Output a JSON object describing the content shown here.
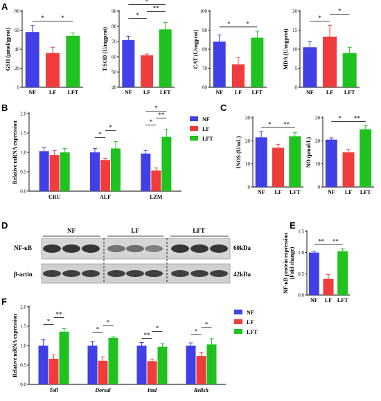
{
  "colors": {
    "NF": "#4040e6",
    "LF": "#f03c3c",
    "LFT": "#1fc21f"
  },
  "panel_labels": {
    "A": "A",
    "B": "B",
    "C": "C",
    "D": "D",
    "E": "E",
    "F": "F"
  },
  "western_blot": {
    "groups": [
      "NF",
      "LF",
      "LFT"
    ],
    "rows": [
      {
        "protein": "NF-κB",
        "size": "60kDa"
      },
      {
        "protein": "β-actin",
        "size": "42kDa"
      }
    ]
  },
  "chart_data": [
    {
      "panel": "A",
      "type": "bar",
      "ylabel": "GSH (μmol/gprot)",
      "categories": [
        "NF",
        "LF",
        "LFT"
      ],
      "ylim": [
        0,
        80
      ],
      "yticks": [
        "0",
        "20",
        "40",
        "60",
        "80"
      ],
      "ytick_values": [
        0,
        20,
        40,
        60,
        80
      ],
      "values": [
        58,
        36,
        54
      ],
      "errors": [
        7,
        6,
        3
      ],
      "sig": [
        {
          "from": 0,
          "to": 1,
          "level": 0,
          "text": "*"
        },
        {
          "from": 1,
          "to": 2,
          "level": 0,
          "text": "*"
        }
      ]
    },
    {
      "panel": "A",
      "type": "bar",
      "ylabel": "T-SOD (U/mgprot)",
      "categories": [
        "NF",
        "LF",
        "LFT"
      ],
      "ylim": [
        40,
        90
      ],
      "yticks": [
        "40",
        "50",
        "60",
        "70",
        "80",
        "90"
      ],
      "ytick_values": [
        40,
        50,
        60,
        70,
        80,
        90
      ],
      "values": [
        71,
        61,
        78
      ],
      "errors": [
        2.5,
        0.8,
        4.5
      ],
      "sig": [
        {
          "from": 0,
          "to": 1,
          "level": 0,
          "text": "*"
        },
        {
          "from": 1,
          "to": 2,
          "level": 1,
          "text": "**"
        },
        {
          "from": 0,
          "to": 2,
          "level": 2,
          "text": "*"
        }
      ]
    },
    {
      "panel": "A",
      "type": "bar",
      "ylabel": "CAT (U/mgprot)",
      "categories": [
        "NF",
        "LF",
        "LFT"
      ],
      "ylim": [
        60,
        100
      ],
      "yticks": [
        "60",
        "70",
        "80",
        "90",
        "100"
      ],
      "ytick_values": [
        60,
        70,
        80,
        90,
        100
      ],
      "values": [
        84,
        72,
        86
      ],
      "errors": [
        3.5,
        3.5,
        3.5
      ],
      "sig": [
        {
          "from": 0,
          "to": 1,
          "level": 0,
          "text": "*"
        },
        {
          "from": 1,
          "to": 2,
          "level": 0,
          "text": "*"
        }
      ]
    },
    {
      "panel": "A",
      "type": "bar",
      "ylabel": "MDA (U/mgprot)",
      "categories": [
        "NF",
        "LF",
        "LFT"
      ],
      "ylim": [
        0,
        20
      ],
      "yticks": [
        "0",
        "5",
        "10",
        "15",
        "20"
      ],
      "ytick_values": [
        0,
        5,
        10,
        15,
        20
      ],
      "values": [
        10.5,
        13.3,
        9
      ],
      "errors": [
        1.5,
        3,
        1.5
      ],
      "sig": [
        {
          "from": 0,
          "to": 1,
          "level": 0,
          "text": "*"
        },
        {
          "from": 1,
          "to": 2,
          "level": 1,
          "text": "*"
        }
      ]
    },
    {
      "panel": "B",
      "type": "bar",
      "ylabel": "Relative  mRNA expression",
      "categories": [
        "CRU",
        "ALF",
        "LZM"
      ],
      "series_names": [
        "NF",
        "LF",
        "LFT"
      ],
      "ylim": [
        0,
        2.0
      ],
      "yticks": [
        "0.0",
        "0.5",
        "1.0",
        "1.5",
        "2.0"
      ],
      "ytick_values": [
        0,
        0.5,
        1,
        1.5,
        2
      ],
      "series": [
        {
          "name": "NF",
          "values": [
            1.03,
            1.0,
            0.97
          ],
          "errors": [
            0.1,
            0.1,
            0.08
          ]
        },
        {
          "name": "LF",
          "values": [
            0.93,
            0.8,
            0.53
          ],
          "errors": [
            0.12,
            0.05,
            0.07
          ]
        },
        {
          "name": "LFT",
          "values": [
            1.0,
            1.1,
            1.4
          ],
          "errors": [
            0.1,
            0.18,
            0.2
          ]
        }
      ],
      "sig": [
        {
          "group": 1,
          "from": 0,
          "to": 1,
          "level": 0,
          "text": "*"
        },
        {
          "group": 1,
          "from": 1,
          "to": 2,
          "level": 1,
          "text": "*"
        },
        {
          "group": 2,
          "from": 0,
          "to": 1,
          "level": 0,
          "text": "*"
        },
        {
          "group": 2,
          "from": 1,
          "to": 2,
          "level": 1,
          "text": "**"
        },
        {
          "group": 2,
          "from": 0,
          "to": 2,
          "level": 2,
          "text": "*"
        }
      ]
    },
    {
      "panel": "C",
      "type": "bar",
      "ylabel": "INOS (U/mL)",
      "categories": [
        "NF",
        "LF",
        "LFT"
      ],
      "ylim": [
        0,
        30
      ],
      "yticks": [
        "0",
        "10",
        "20",
        "30"
      ],
      "ytick_values": [
        0,
        10,
        20,
        30
      ],
      "values": [
        21.5,
        17,
        22
      ],
      "errors": [
        2.5,
        1.5,
        1.5
      ],
      "sig": [
        {
          "from": 0,
          "to": 1,
          "level": 0,
          "text": "*"
        },
        {
          "from": 1,
          "to": 2,
          "level": 0,
          "text": "**"
        }
      ]
    },
    {
      "panel": "C",
      "type": "bar",
      "ylabel": "NO (μmol/L)",
      "categories": [
        "NF",
        "LF",
        "LFT"
      ],
      "ylim": [
        0,
        30
      ],
      "yticks": [
        "0",
        "10",
        "20",
        "30"
      ],
      "ytick_values": [
        0,
        10,
        20,
        30
      ],
      "values": [
        20.5,
        15,
        25
      ],
      "errors": [
        0.8,
        1.2,
        1.5
      ],
      "sig": [
        {
          "from": 0,
          "to": 1,
          "level": 0,
          "text": "*"
        },
        {
          "from": 1,
          "to": 2,
          "level": 0,
          "text": "**"
        }
      ]
    },
    {
      "panel": "E",
      "type": "bar",
      "ylabel": "NF-κB protein expression (Fold change)",
      "ylabel_lines": [
        "NF-κB protein expression",
        "(Fold change)"
      ],
      "categories": [
        "NF",
        "LF",
        "LFT"
      ],
      "ylim": [
        0,
        1.5
      ],
      "yticks": [
        "0.0",
        "0.5",
        "1.0",
        "1.5"
      ],
      "ytick_values": [
        0,
        0.5,
        1,
        1.5
      ],
      "values": [
        1.0,
        0.38,
        1.03
      ],
      "errors": [
        0.03,
        0.1,
        0.06
      ],
      "sig": [
        {
          "from": 0,
          "to": 1,
          "level": 0,
          "text": "**"
        },
        {
          "from": 1,
          "to": 2,
          "level": 0,
          "text": "**"
        }
      ]
    },
    {
      "panel": "F",
      "type": "bar",
      "ylabel": "Relative  mRNA expression",
      "categories": [
        "Toll",
        "Dorsal",
        "Imd",
        "Relish"
      ],
      "series_names": [
        "NF",
        "LF",
        "LFT"
      ],
      "ylim": [
        0,
        2.0
      ],
      "yticks": [
        "0.0",
        "0.5",
        "1.0",
        "1.5",
        "2.0"
      ],
      "ytick_values": [
        0,
        0.5,
        1,
        1.5,
        2
      ],
      "series": [
        {
          "name": "NF",
          "values": [
            1.0,
            1.0,
            1.0,
            1.0
          ],
          "errors": [
            0.15,
            0.1,
            0.08,
            0.07
          ]
        },
        {
          "name": "LF",
          "values": [
            0.66,
            0.61,
            0.6,
            0.73
          ],
          "errors": [
            0.1,
            0.1,
            0.05,
            0.1
          ]
        },
        {
          "name": "LFT",
          "values": [
            1.36,
            1.2,
            0.97,
            1.03
          ],
          "errors": [
            0.08,
            0.03,
            0.08,
            0.15
          ]
        }
      ],
      "sig": [
        {
          "group": 0,
          "from": 0,
          "to": 1,
          "level": 0,
          "text": "*"
        },
        {
          "group": 0,
          "from": 1,
          "to": 2,
          "level": 1,
          "text": "**"
        },
        {
          "group": 1,
          "from": 0,
          "to": 1,
          "level": 0,
          "text": "*"
        },
        {
          "group": 1,
          "from": 1,
          "to": 2,
          "level": 1,
          "text": "*"
        },
        {
          "group": 2,
          "from": 0,
          "to": 1,
          "level": 0,
          "text": "**"
        },
        {
          "group": 2,
          "from": 1,
          "to": 2,
          "level": 1,
          "text": "*"
        },
        {
          "group": 3,
          "from": 0,
          "to": 1,
          "level": 0,
          "text": "*"
        },
        {
          "group": 3,
          "from": 1,
          "to": 2,
          "level": 1,
          "text": "*"
        }
      ]
    }
  ]
}
